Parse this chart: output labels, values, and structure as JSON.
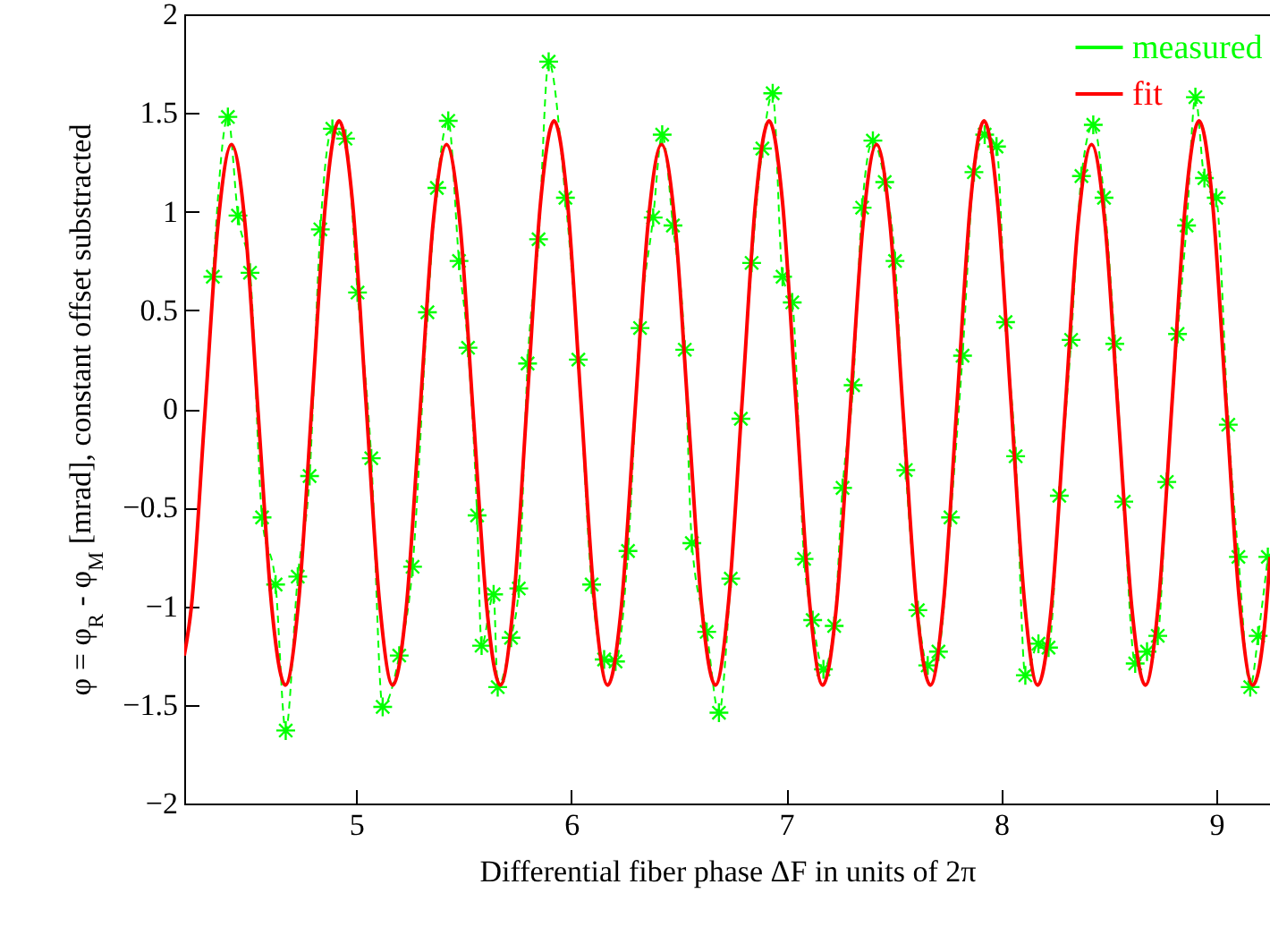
{
  "chart_data": {
    "type": "line",
    "xlabel": "Differential fiber phase ΔF in units of 2π",
    "ylabel": "φ = φ$_{R}$ - φ$_{M}$ [mrad], constant offset substracted",
    "xlim": [
      4.2,
      9.25
    ],
    "ylim": [
      -2,
      2
    ],
    "xticks": [
      5,
      6,
      7,
      8,
      9
    ],
    "yticks": [
      -2,
      -1.5,
      -1,
      -0.5,
      0,
      0.5,
      1,
      1.5,
      2
    ],
    "legend": "top right",
    "series": [
      {
        "name": "measured",
        "color": "#00ff00",
        "line_style": "dashed",
        "marker": "cross",
        "x": [
          4.333,
          4.403,
          4.45,
          4.506,
          4.562,
          4.625,
          4.672,
          4.728,
          4.783,
          4.833,
          4.889,
          4.95,
          5.006,
          5.07,
          5.123,
          5.2,
          5.262,
          5.331,
          5.375,
          5.428,
          5.478,
          5.52,
          5.562,
          5.583,
          5.639,
          5.658,
          5.72,
          5.756,
          5.797,
          5.848,
          5.895,
          5.973,
          6.033,
          6.095,
          6.153,
          6.206,
          6.264,
          6.32,
          6.381,
          6.423,
          6.473,
          6.528,
          6.561,
          6.63,
          6.687,
          6.742,
          6.789,
          6.839,
          6.889,
          6.937,
          6.983,
          7.028,
          7.083,
          7.123,
          7.173,
          7.223,
          7.262,
          7.311,
          7.353,
          7.403,
          7.458,
          7.506,
          7.556,
          7.612,
          7.658,
          7.708,
          7.764,
          7.82,
          7.873,
          7.923,
          7.978,
          8.02,
          8.067,
          8.112,
          8.173,
          8.22,
          8.27,
          8.325,
          8.373,
          8.428,
          8.478,
          8.528,
          8.57,
          8.623,
          8.678,
          8.728,
          8.77,
          8.82,
          8.862,
          8.903,
          8.945,
          9.0,
          9.056,
          9.103,
          9.158,
          9.195,
          9.24
        ],
        "values": [
          0.67,
          1.48,
          0.98,
          0.69,
          -0.55,
          -0.89,
          -1.63,
          -0.85,
          -0.34,
          0.91,
          1.42,
          1.37,
          0.59,
          -0.25,
          -1.51,
          -1.25,
          -0.8,
          0.49,
          1.12,
          1.46,
          0.75,
          0.31,
          -0.54,
          -1.2,
          -0.94,
          -1.41,
          -1.16,
          -0.91,
          0.23,
          0.86,
          1.76,
          1.07,
          0.25,
          -0.89,
          -1.27,
          -1.28,
          -0.72,
          0.41,
          0.97,
          1.39,
          0.93,
          0.3,
          -0.68,
          -1.13,
          -1.54,
          -0.86,
          -0.05,
          0.74,
          1.32,
          1.6,
          0.67,
          0.54,
          -0.76,
          -1.07,
          -1.32,
          -1.1,
          -0.4,
          0.12,
          1.02,
          1.36,
          1.15,
          0.75,
          -0.31,
          -1.02,
          -1.3,
          -1.23,
          -0.55,
          0.27,
          1.2,
          1.39,
          1.33,
          0.44,
          -0.24,
          -1.35,
          -1.19,
          -1.21,
          -0.44,
          0.35,
          1.18,
          1.44,
          1.07,
          0.33,
          -0.47,
          -1.29,
          -1.23,
          -1.15,
          -0.37,
          0.38,
          0.93,
          1.58,
          1.17,
          1.07,
          -0.08,
          -0.75,
          -1.41,
          -1.15,
          -0.75
        ]
      },
      {
        "name": "fit",
        "color": "#ff0000",
        "line_style": "solid",
        "marker": "none",
        "x": [
          4.2,
          4.2325,
          4.295,
          4.3575,
          4.42,
          4.4825,
          4.545,
          4.6075,
          4.67,
          4.7325,
          4.795,
          4.8575,
          4.92,
          4.9825,
          5.045,
          5.1075,
          5.17,
          5.2325,
          5.295,
          5.3575,
          5.42,
          5.4825,
          5.545,
          5.6075,
          5.67,
          5.7325,
          5.795,
          5.8575,
          5.92,
          5.9825,
          6.045,
          6.1075,
          6.17,
          6.2325,
          6.295,
          6.3575,
          6.42,
          6.4825,
          6.545,
          6.6075,
          6.67,
          6.7325,
          6.795,
          6.8575,
          6.92,
          6.9825,
          7.045,
          7.1075,
          7.17,
          7.2325,
          7.295,
          7.3575,
          7.42,
          7.4825,
          7.545,
          7.6075,
          7.67,
          7.7325,
          7.795,
          7.8575,
          7.92,
          7.9825,
          8.045,
          8.1075,
          8.17,
          8.2325,
          8.295,
          8.3575,
          8.42,
          8.4825,
          8.545,
          8.6075,
          8.67,
          8.7325,
          8.795,
          8.8575,
          8.92,
          8.9825,
          9.045,
          9.1075,
          9.17,
          9.2325,
          9.25
        ],
        "values": [
          -1.25,
          -1.01,
          -0.04,
          0.94,
          1.34,
          0.94,
          -0.04,
          -1.01,
          -1.4,
          -0.97,
          0.04,
          1.05,
          1.46,
          1.05,
          0.04,
          -0.97,
          -1.4,
          -1.01,
          -0.04,
          0.94,
          1.34,
          0.94,
          -0.04,
          -1.01,
          -1.4,
          -0.97,
          0.04,
          1.05,
          1.46,
          1.05,
          0.04,
          -0.97,
          -1.4,
          -1.01,
          -0.04,
          0.94,
          1.34,
          0.94,
          -0.04,
          -1.01,
          -1.4,
          -0.97,
          0.04,
          1.05,
          1.46,
          1.05,
          0.04,
          -0.97,
          -1.4,
          -1.01,
          -0.04,
          0.94,
          1.34,
          0.94,
          -0.04,
          -1.01,
          -1.4,
          -0.97,
          0.04,
          1.05,
          1.46,
          1.05,
          0.04,
          -0.97,
          -1.4,
          -1.01,
          -0.04,
          0.94,
          1.34,
          0.94,
          -0.04,
          -1.01,
          -1.4,
          -0.97,
          0.04,
          1.05,
          1.46,
          1.05,
          0.04,
          -0.97,
          -1.4,
          -1.01,
          -0.75
        ]
      }
    ]
  }
}
